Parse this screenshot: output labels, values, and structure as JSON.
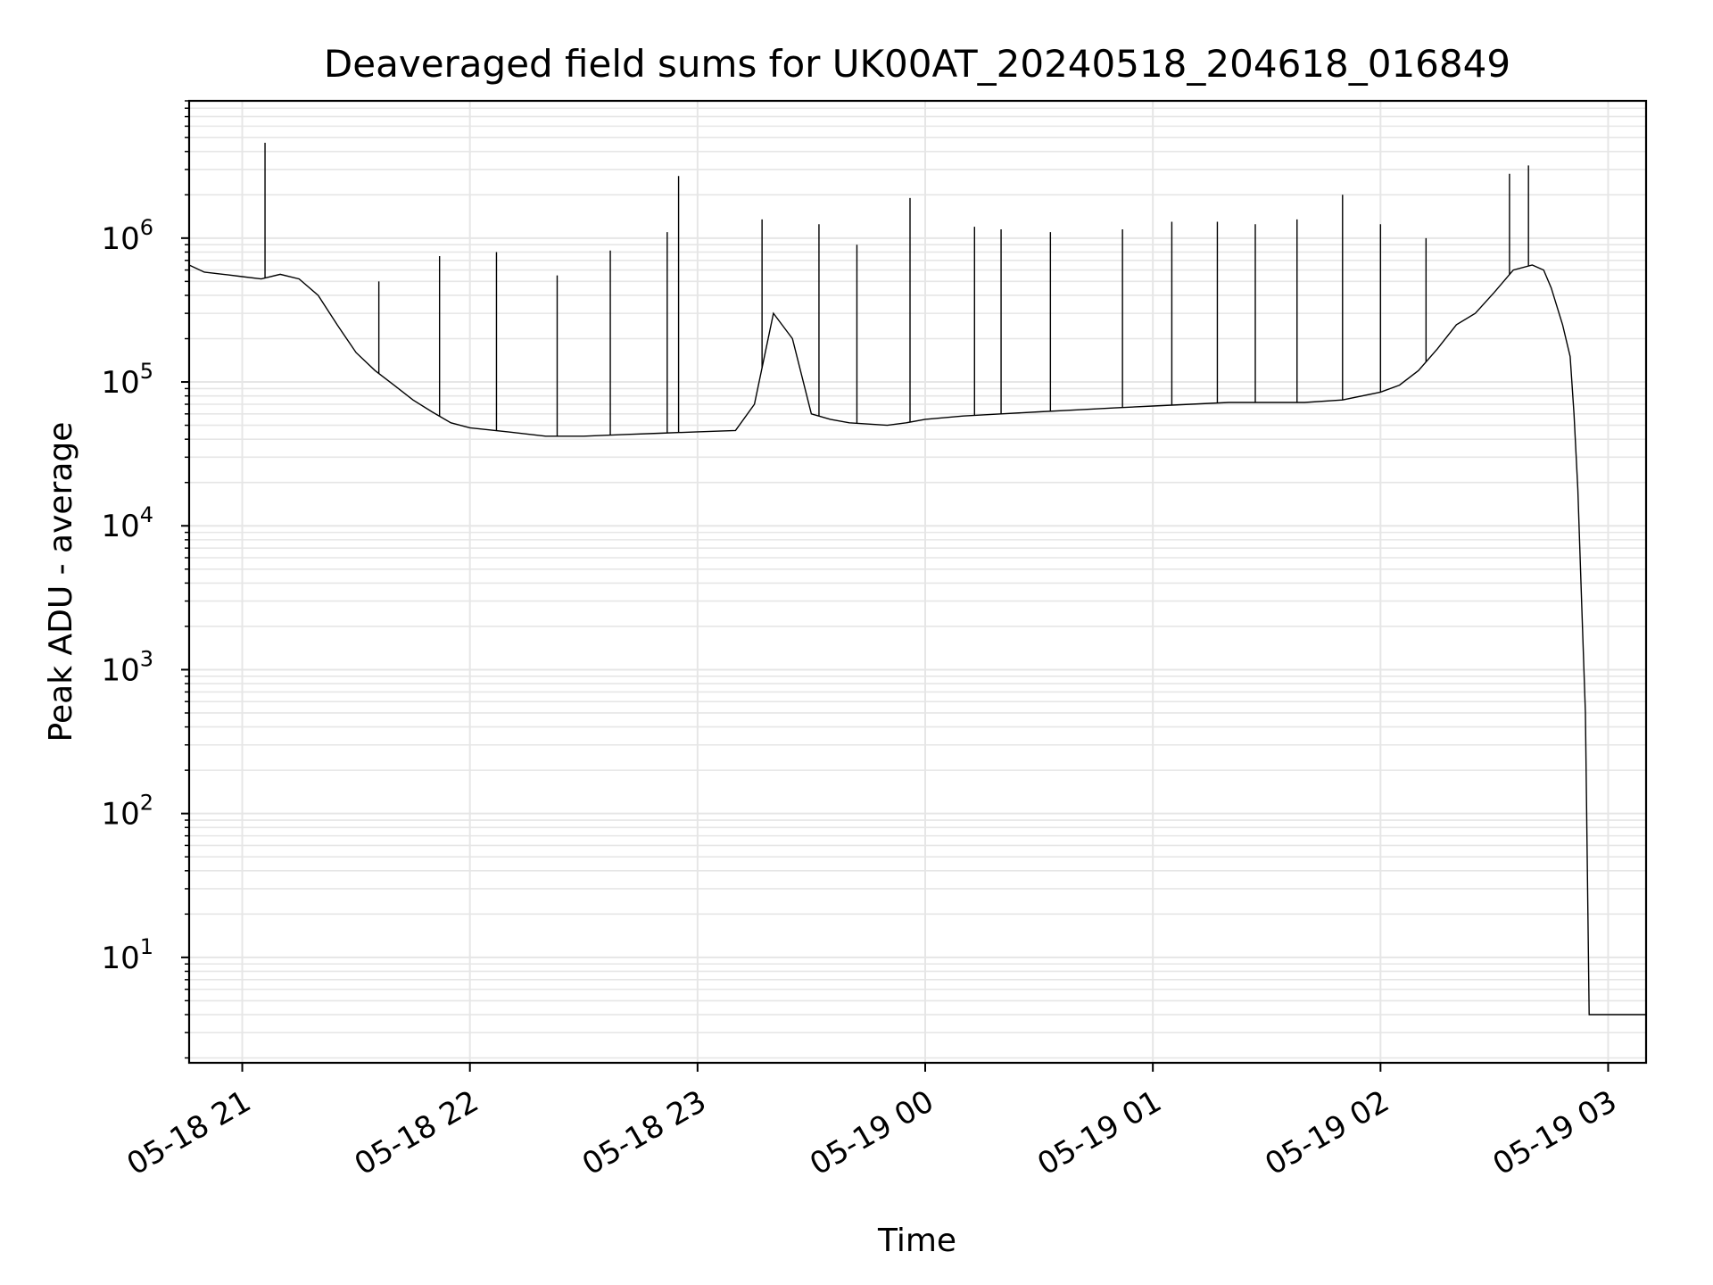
{
  "chart_data": {
    "type": "line",
    "title": "Deaveraged field sums for UK00AT_20240518_204618_016849",
    "xlabel": "Time",
    "ylabel": "Peak ADU - average",
    "yscale": "log",
    "grid": true,
    "line_color": "#000000",
    "grid_color": "#e6e6e6",
    "xlim": [
      "2024-05-18 20:46",
      "2024-05-19 03:10"
    ],
    "ylim": [
      1.85,
      9000000
    ],
    "x_ticks": [
      {
        "t": "2024-05-18 21:00",
        "label": "05-18 21"
      },
      {
        "t": "2024-05-18 22:00",
        "label": "05-18 22"
      },
      {
        "t": "2024-05-18 23:00",
        "label": "05-18 23"
      },
      {
        "t": "2024-05-19 00:00",
        "label": "05-19 00"
      },
      {
        "t": "2024-05-19 01:00",
        "label": "05-19 01"
      },
      {
        "t": "2024-05-19 02:00",
        "label": "05-19 02"
      },
      {
        "t": "2024-05-19 03:00",
        "label": "05-19 03"
      }
    ],
    "y_ticks": [
      {
        "value": 10,
        "base": "10",
        "exp": "1"
      },
      {
        "value": 100,
        "base": "10",
        "exp": "2"
      },
      {
        "value": 1000,
        "base": "10",
        "exp": "3"
      },
      {
        "value": 10000,
        "base": "10",
        "exp": "4"
      },
      {
        "value": 100000,
        "base": "10",
        "exp": "5"
      },
      {
        "value": 1000000,
        "base": "10",
        "exp": "6"
      }
    ],
    "series": [
      {
        "x": [
          "2024-05-18 20:46",
          "2024-05-18 20:50",
          "2024-05-18 20:55",
          "2024-05-18 21:00",
          "2024-05-18 21:05",
          "2024-05-18 21:10",
          "2024-05-18 21:15",
          "2024-05-18 21:20",
          "2024-05-18 21:25",
          "2024-05-18 21:30",
          "2024-05-18 21:35",
          "2024-05-18 21:40",
          "2024-05-18 21:45",
          "2024-05-18 21:50",
          "2024-05-18 21:55",
          "2024-05-18 22:00",
          "2024-05-18 22:10",
          "2024-05-18 22:20",
          "2024-05-18 22:30",
          "2024-05-18 22:40",
          "2024-05-18 22:50",
          "2024-05-18 23:00",
          "2024-05-18 23:10",
          "2024-05-18 23:15",
          "2024-05-18 23:20",
          "2024-05-18 23:25",
          "2024-05-18 23:30",
          "2024-05-18 23:35",
          "2024-05-18 23:40",
          "2024-05-18 23:50",
          "2024-05-18 23:55",
          "2024-05-19 00:00",
          "2024-05-19 00:10",
          "2024-05-19 00:20",
          "2024-05-19 00:30",
          "2024-05-19 00:40",
          "2024-05-19 00:50",
          "2024-05-19 01:00",
          "2024-05-19 01:10",
          "2024-05-19 01:20",
          "2024-05-19 01:30",
          "2024-05-19 01:40",
          "2024-05-19 01:50",
          "2024-05-19 02:00",
          "2024-05-19 02:05",
          "2024-05-19 02:10",
          "2024-05-19 02:15",
          "2024-05-19 02:20",
          "2024-05-19 02:25",
          "2024-05-19 02:30",
          "2024-05-19 02:35",
          "2024-05-19 02:40",
          "2024-05-19 02:43",
          "2024-05-19 02:45",
          "2024-05-19 02:48",
          "2024-05-19 02:50",
          "2024-05-19 02:51",
          "2024-05-19 02:52",
          "2024-05-19 02:53",
          "2024-05-19 02:54",
          "2024-05-19 02:55",
          "2024-05-19 02:56",
          "2024-05-19 03:10"
        ],
        "values": [
          650000,
          580000,
          560000,
          540000,
          520000,
          560000,
          520000,
          400000,
          250000,
          160000,
          120000,
          95000,
          75000,
          62000,
          52000,
          48000,
          45000,
          42000,
          42000,
          43000,
          44000,
          45000,
          46000,
          70000,
          300000,
          200000,
          60000,
          55000,
          52000,
          50000,
          52000,
          55000,
          58000,
          60000,
          62000,
          64000,
          66000,
          68000,
          70000,
          72000,
          72000,
          72000,
          75000,
          85000,
          95000,
          120000,
          170000,
          250000,
          300000,
          420000,
          600000,
          650000,
          600000,
          450000,
          250000,
          150000,
          60000,
          18000,
          3000,
          500,
          4,
          4,
          4
        ]
      },
      {
        "name_hidden": "",
        "spikes": [
          {
            "t": "2024-05-18 21:06",
            "v": 4600000
          },
          {
            "t": "2024-05-18 21:36",
            "v": 500000
          },
          {
            "t": "2024-05-18 21:52",
            "v": 750000
          },
          {
            "t": "2024-05-18 22:07",
            "v": 800000
          },
          {
            "t": "2024-05-18 22:23",
            "v": 550000
          },
          {
            "t": "2024-05-18 22:37",
            "v": 820000
          },
          {
            "t": "2024-05-18 22:52",
            "v": 1100000
          },
          {
            "t": "2024-05-18 22:55",
            "v": 2700000
          },
          {
            "t": "2024-05-18 23:17",
            "v": 1350000
          },
          {
            "t": "2024-05-18 23:32",
            "v": 1250000
          },
          {
            "t": "2024-05-18 23:42",
            "v": 900000
          },
          {
            "t": "2024-05-18 23:56",
            "v": 1900000
          },
          {
            "t": "2024-05-19 00:13",
            "v": 1200000
          },
          {
            "t": "2024-05-19 00:20",
            "v": 1150000
          },
          {
            "t": "2024-05-19 00:33",
            "v": 1100000
          },
          {
            "t": "2024-05-19 00:52",
            "v": 1150000
          },
          {
            "t": "2024-05-19 01:05",
            "v": 1300000
          },
          {
            "t": "2024-05-19 01:17",
            "v": 1300000
          },
          {
            "t": "2024-05-19 01:27",
            "v": 1250000
          },
          {
            "t": "2024-05-19 01:38",
            "v": 1350000
          },
          {
            "t": "2024-05-19 01:50",
            "v": 2000000
          },
          {
            "t": "2024-05-19 02:00",
            "v": 1250000
          },
          {
            "t": "2024-05-19 02:12",
            "v": 1000000
          },
          {
            "t": "2024-05-19 02:34",
            "v": 2800000
          },
          {
            "t": "2024-05-19 02:39",
            "v": 3200000
          }
        ]
      }
    ]
  }
}
